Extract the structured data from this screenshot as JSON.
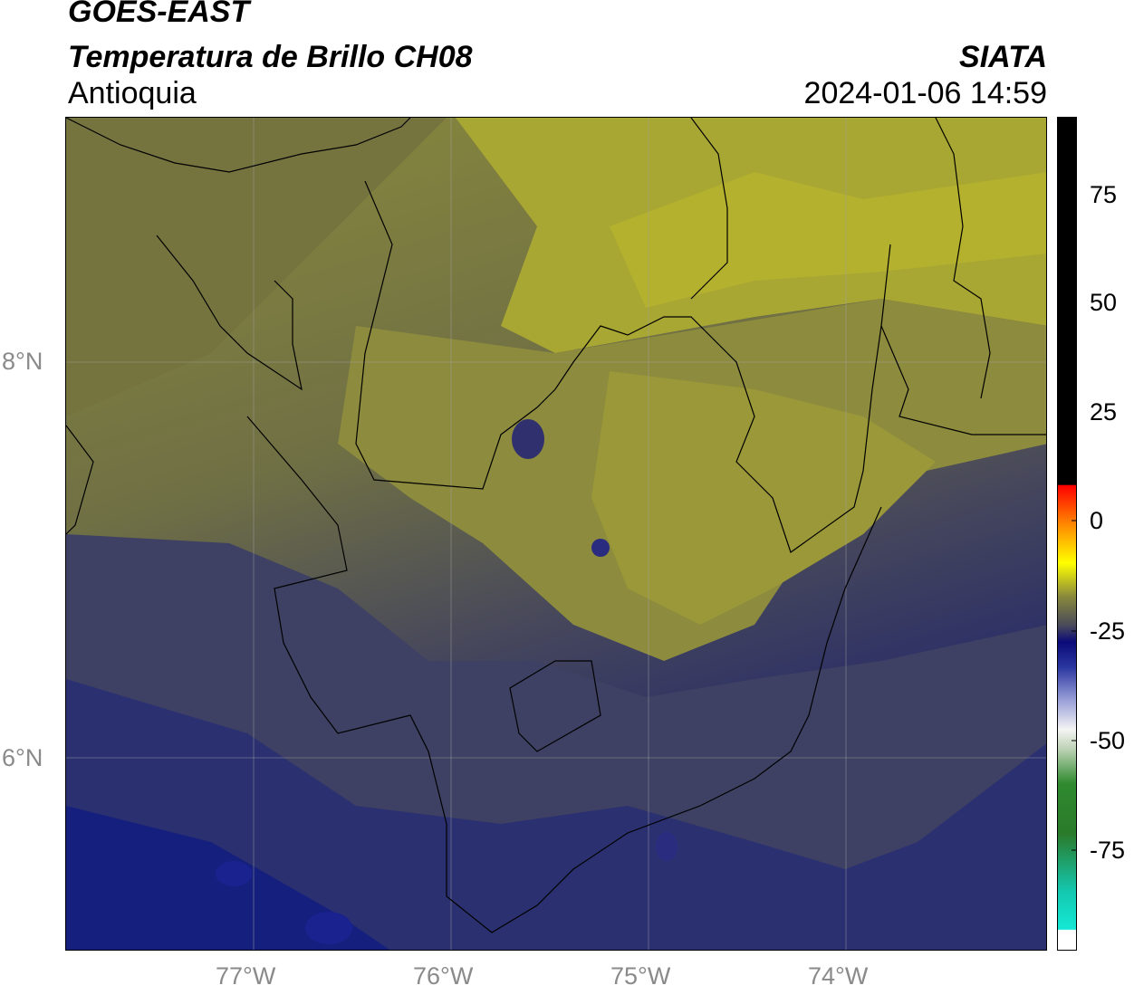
{
  "header": {
    "satellite": "GOES-EAST",
    "product": "Temperatura de Brillo CH08",
    "region": "Antioquia",
    "agency": "SIATA",
    "datetime": "2024-01-06 14:59"
  },
  "map": {
    "lat_ticks": [
      "8°N",
      "6°N"
    ],
    "lon_ticks": [
      "77°W",
      "76°W",
      "75°W",
      "74°W"
    ]
  },
  "colorbar": {
    "tick_labels": [
      "75",
      "50",
      "25",
      "0",
      "-25",
      "-50",
      "-75"
    ],
    "colors": {
      "warm": "#000000",
      "red": "#ff0000",
      "orange": "#ff9900",
      "yellow": "#ffff00",
      "olive": "#6b6b3a",
      "dark_blue": "#0a0a78",
      "light_gray": "#f0f0f0",
      "green": "#2a7a2a",
      "cyan": "#14e8d4"
    }
  }
}
